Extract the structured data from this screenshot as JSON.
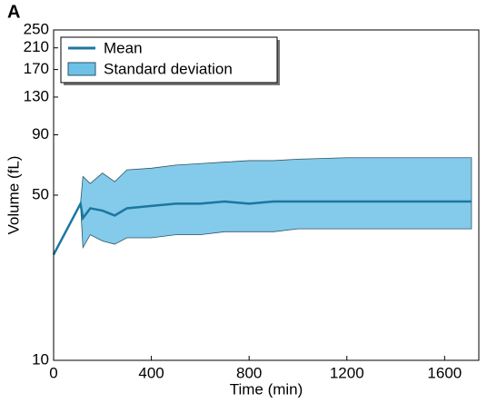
{
  "chart_data": {
    "type": "line",
    "panel_label": "A",
    "x_label": "Time (min)",
    "y_label": "Volume (fL)",
    "x": [
      0,
      110,
      120,
      150,
      200,
      250,
      300,
      400,
      500,
      600,
      700,
      800,
      900,
      1000,
      1200,
      1400,
      1600,
      1710
    ],
    "series": [
      {
        "name": "Mean",
        "color": "#1a77a0",
        "values": [
          28,
          46,
          40,
          44,
          43,
          41,
          44,
          45,
          46,
          46,
          47,
          46,
          47,
          47,
          47,
          47,
          47,
          47
        ]
      }
    ],
    "band": {
      "name": "Standard deviation",
      "color": "#6ec1e6",
      "upper": [
        28,
        46,
        60,
        56,
        62,
        57,
        64,
        65,
        67,
        68,
        69,
        70,
        70,
        71,
        72,
        72,
        72,
        72
      ],
      "lower": [
        28,
        46,
        30,
        34,
        32,
        31,
        33,
        33,
        34,
        34,
        35,
        35,
        35,
        36,
        36,
        36,
        36,
        36
      ]
    },
    "xlim": [
      0,
      1740
    ],
    "xticks": [
      0,
      400,
      800,
      1200,
      1600
    ],
    "ylim": [
      10,
      250
    ],
    "yticks": [
      10,
      50,
      90,
      130,
      170,
      210,
      250
    ],
    "log_y": true,
    "grid": false,
    "legend": "upper left"
  }
}
